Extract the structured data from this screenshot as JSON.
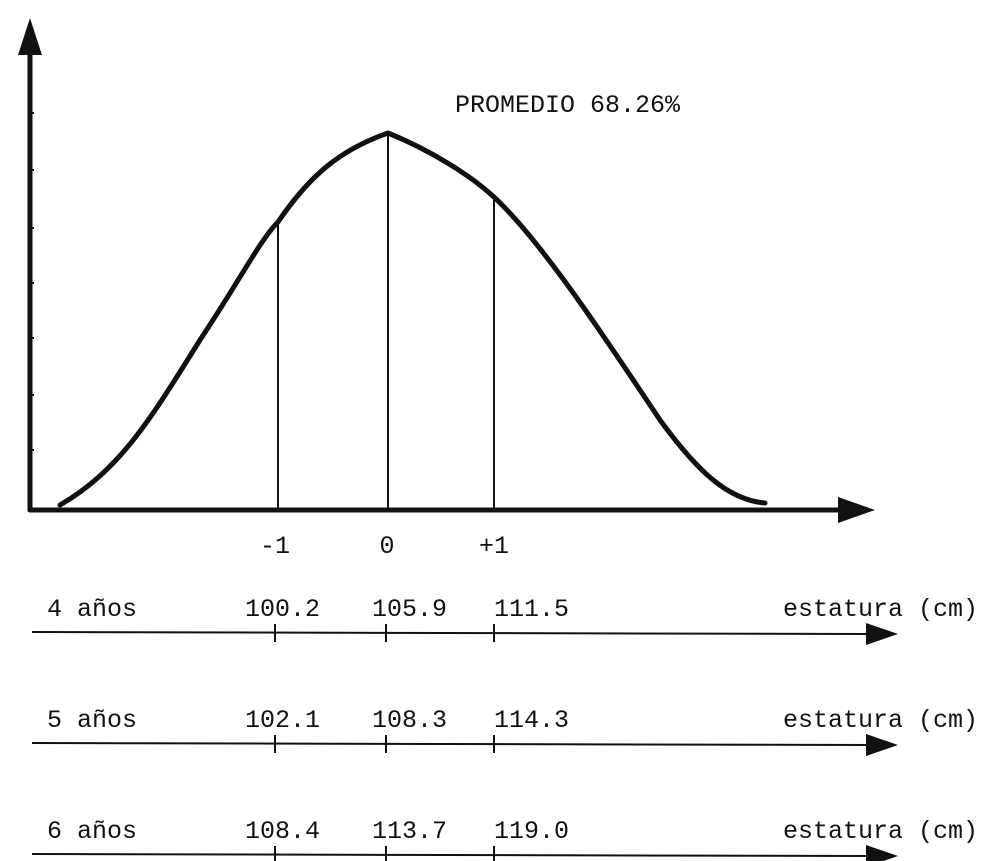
{
  "annotation": "PROMEDIO 68.26%",
  "sd_labels": [
    "-1",
    "0",
    "+1"
  ],
  "scales": [
    {
      "label": "4 años",
      "values": [
        "100.2",
        "105.9",
        "111.5"
      ],
      "unit": "estatura (cm)"
    },
    {
      "label": "5 años",
      "values": [
        "102.1",
        "108.3",
        "114.3"
      ],
      "unit": "estatura (cm)"
    },
    {
      "label": "6 años",
      "values": [
        "108.4",
        "113.7",
        "119.0"
      ],
      "unit": "estatura (cm)"
    }
  ]
}
